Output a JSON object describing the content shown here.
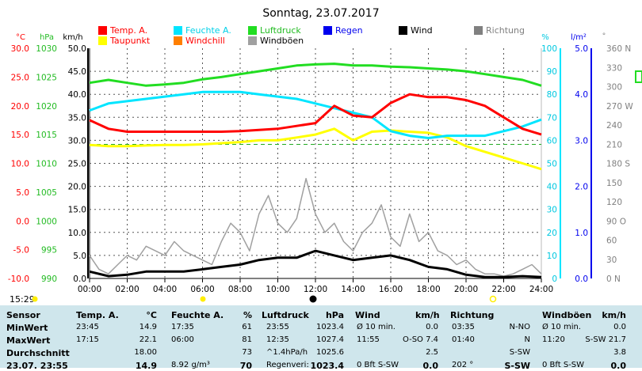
{
  "title": "Sonntag, 23.07.2017",
  "time_label": "15:29",
  "legend": [
    {
      "label": "Temp. A.",
      "color": "#ff0000"
    },
    {
      "label": "Feuchte A.",
      "color": "#00e5ff"
    },
    {
      "label": "Luftdruck",
      "color": "#22dd22"
    },
    {
      "label": "Regen",
      "color": "#0000ee"
    },
    {
      "label": "Wind",
      "color": "#000000"
    },
    {
      "label": "Richtung",
      "color": "#808080"
    },
    {
      "label": "Taupunkt",
      "color": "#ffff00"
    },
    {
      "label": "Windchill",
      "color": "#ff7f00"
    },
    {
      "label": "Windböen",
      "color": "#a0a0a0"
    }
  ],
  "axis_units": {
    "temp": "°C",
    "pressure": "hPa",
    "wind": "km/h",
    "humidity": "%",
    "rain": "l/m²",
    "direction": "°"
  },
  "chart_data": {
    "type": "line",
    "title": "Sonntag, 23.07.2017",
    "x_labels": [
      "00:00",
      "02:00",
      "04:00",
      "06:00",
      "08:00",
      "10:00",
      "12:00",
      "14:00",
      "16:00",
      "18:00",
      "20:00",
      "22:00",
      "24:00"
    ],
    "axes": {
      "temp": {
        "unit": "°C",
        "ticks": [
          "30.0",
          "25.0",
          "20.0",
          "15.0",
          "10.0",
          "5.0",
          "0.0",
          "-5.0",
          "-10.0"
        ],
        "range": [
          -10,
          30
        ]
      },
      "pressure": {
        "unit": "hPa",
        "ticks": [
          "1030",
          "1025",
          "1020",
          "1015",
          "1010",
          "1005",
          "1000",
          "995",
          "990"
        ],
        "range": [
          990,
          1030
        ]
      },
      "wind": {
        "unit": "km/h",
        "ticks": [
          "50.0",
          "45.0",
          "40.0",
          "35.0",
          "30.0",
          "25.0",
          "20.0",
          "15.0",
          "10.0",
          "5.0",
          "0.0"
        ],
        "range": [
          0,
          50
        ]
      },
      "humidity": {
        "unit": "%",
        "ticks": [
          "100",
          "90",
          "80",
          "70",
          "60",
          "50",
          "40",
          "30",
          "20",
          "10",
          "0"
        ],
        "range": [
          0,
          100
        ]
      },
      "rain": {
        "unit": "l/m²",
        "ticks": [
          "5.0",
          "4.0",
          "3.0",
          "2.0",
          "1.0",
          "0.0"
        ],
        "range": [
          0,
          5
        ]
      },
      "direction": {
        "unit": "°",
        "ticks": [
          "360 N",
          "330",
          "300",
          "270 W",
          "240",
          "210",
          "180 S",
          "150",
          "120",
          "90 O",
          "60",
          "30",
          "0 N"
        ],
        "range": [
          0,
          360
        ]
      }
    },
    "series": [
      {
        "name": "Temp. A.",
        "axis": "temp",
        "color": "#ff0000",
        "x": [
          0,
          1,
          2,
          3,
          4,
          5,
          6,
          7,
          8,
          9,
          10,
          11,
          12,
          13,
          14,
          15,
          16,
          17,
          18,
          19,
          20,
          21,
          22,
          23,
          24
        ],
        "values": [
          17.5,
          16,
          15.5,
          15.5,
          15.5,
          15.5,
          15.5,
          15.5,
          15.6,
          15.8,
          16,
          16.5,
          17,
          20,
          18.3,
          18,
          20.5,
          22,
          21.5,
          21.5,
          21,
          20,
          18,
          16,
          15
        ]
      },
      {
        "name": "Feuchte A.",
        "axis": "humidity",
        "color": "#00e5ff",
        "x": [
          0,
          1,
          2,
          3,
          4,
          5,
          6,
          7,
          8,
          9,
          10,
          11,
          12,
          13,
          14,
          15,
          16,
          17,
          18,
          19,
          20,
          21,
          22,
          23,
          24
        ],
        "values": [
          73,
          76,
          77,
          78,
          79,
          80,
          81,
          81,
          81,
          80,
          79,
          78,
          76,
          74,
          72,
          70,
          64,
          62,
          61,
          62,
          62,
          62,
          64,
          66,
          69
        ]
      },
      {
        "name": "Luftdruck",
        "axis": "pressure",
        "color": "#22dd22",
        "x": [
          0,
          1,
          2,
          3,
          4,
          5,
          6,
          7,
          8,
          9,
          10,
          11,
          12,
          13,
          14,
          15,
          16,
          17,
          18,
          19,
          20,
          21,
          22,
          23,
          24
        ],
        "values": [
          1024,
          1024.5,
          1024,
          1023.5,
          1023.7,
          1024,
          1024.6,
          1025,
          1025.5,
          1026,
          1026.5,
          1027,
          1027.2,
          1027.3,
          1027,
          1027,
          1026.8,
          1026.7,
          1026.5,
          1026.3,
          1026,
          1025.5,
          1025,
          1024.5,
          1023.5
        ]
      },
      {
        "name": "Taupunkt",
        "axis": "temp",
        "color": "#ffff00",
        "x": [
          0,
          1,
          2,
          3,
          4,
          5,
          6,
          7,
          8,
          9,
          10,
          11,
          12,
          13,
          14,
          15,
          16,
          17,
          18,
          19,
          20,
          21,
          22,
          23,
          24
        ],
        "values": [
          13.2,
          13,
          13,
          13.1,
          13.2,
          13.2,
          13.3,
          13.5,
          13.7,
          14,
          14,
          14.5,
          15,
          16,
          14,
          15.5,
          15.7,
          15.5,
          15.3,
          14.5,
          13,
          12,
          11,
          10,
          9
        ]
      },
      {
        "name": "Wind",
        "axis": "wind",
        "color": "#000000",
        "x": [
          0,
          1,
          2,
          3,
          4,
          5,
          6,
          7,
          8,
          9,
          10,
          11,
          12,
          13,
          14,
          15,
          16,
          17,
          18,
          19,
          20,
          21,
          22,
          23,
          24
        ],
        "values": [
          1.5,
          0.5,
          0.8,
          1.5,
          1.5,
          1.5,
          2,
          2.5,
          3,
          4,
          4.5,
          4.5,
          6,
          5,
          4,
          4.5,
          5,
          4,
          2.5,
          2,
          0.8,
          0.3,
          0.3,
          0.5,
          0.3
        ]
      },
      {
        "name": "Windböen",
        "axis": "wind",
        "color": "#a0a0a0",
        "x": [
          0,
          0.5,
          1,
          1.5,
          2,
          2.5,
          3,
          3.5,
          4,
          4.5,
          5,
          5.5,
          6,
          6.5,
          7,
          7.5,
          8,
          8.5,
          9,
          9.5,
          10,
          10.5,
          11,
          11.5,
          12,
          12.5,
          13,
          13.5,
          14,
          14.5,
          15,
          15.5,
          16,
          16.5,
          17,
          17.5,
          18,
          18.5,
          19,
          19.5,
          20,
          20.5,
          21,
          21.5,
          22,
          22.5,
          23,
          23.5,
          24
        ],
        "values": [
          5,
          2,
          1,
          3,
          5,
          4,
          7,
          6,
          5,
          8,
          6,
          5,
          4,
          3,
          8,
          12,
          10,
          6,
          14,
          18,
          12,
          10,
          13,
          21.7,
          14,
          10,
          12,
          8,
          6,
          10,
          12,
          16,
          9,
          7,
          14,
          8,
          10,
          6,
          5,
          3,
          4,
          2,
          1,
          1,
          0.5,
          1,
          2,
          3,
          1
        ]
      }
    ]
  },
  "stats": {
    "headers": [
      "Sensor",
      "Temp. A.",
      "°C",
      "Feuchte A.",
      "%",
      "Luftdruck",
      "hPa",
      "Wind",
      "km/h",
      "Richtung",
      "Windböen",
      "km/h"
    ],
    "row_labels": [
      "MinWert",
      "MaxWert",
      "Durchschnitt",
      "23.07. 23:55"
    ],
    "min": [
      "23:45",
      "14.9",
      "17:35",
      "61",
      "23:55",
      "1023.4",
      "Ø 10 min.",
      "0.0",
      "03:35",
      "N-NO",
      "Ø 10 min.",
      "0.0"
    ],
    "max": [
      "17:15",
      "22.1",
      "06:00",
      "81",
      "12:35",
      "1027.4",
      "11:55",
      "O-SO 7.4",
      "01:40",
      "N",
      "11:20",
      "S-SW 21.7"
    ],
    "avg": [
      "",
      "18.00",
      "",
      "73",
      "^1.4hPa/h",
      "1025.6",
      "",
      "2.5",
      "",
      "S-SW",
      "",
      "3.8"
    ],
    "last": [
      "",
      "14.9",
      "8.92 g/m³",
      "70",
      "Regenveri:",
      "1023.4",
      "0 Bft S-SW",
      "0.0",
      "202 °",
      "S-SW",
      "0 Bft S-SW",
      "0.0"
    ]
  }
}
